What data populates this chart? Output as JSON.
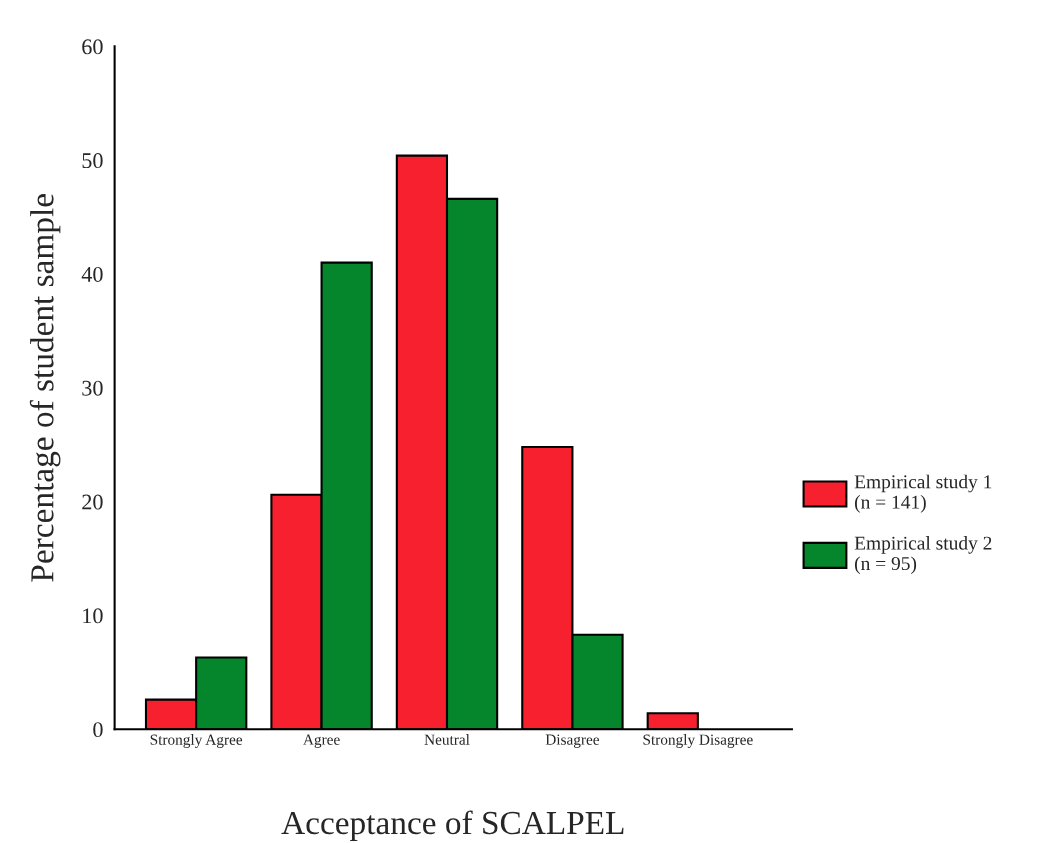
{
  "chart_data": {
    "type": "bar",
    "xlabel": "Acceptance of SCALPEL",
    "ylabel": "Percentage of student sample",
    "categories": [
      "Strongly Agree",
      "Agree",
      "Neutral",
      "Disagree",
      "Strongly Disagree"
    ],
    "series": [
      {
        "name": "Empirical study 1\n(n = 141)",
        "color": "#f7202e",
        "values": [
          2.6,
          20.6,
          50.4,
          24.8,
          1.4
        ]
      },
      {
        "name": "Empirical study 2\n(n = 95)",
        "color": "#05852c",
        "values": [
          6.3,
          41.0,
          46.6,
          8.3,
          null
        ]
      }
    ],
    "ylim": [
      0,
      60
    ],
    "yticks": [
      0,
      10,
      20,
      30,
      40,
      50,
      60
    ],
    "grid": false,
    "legend": "right"
  }
}
